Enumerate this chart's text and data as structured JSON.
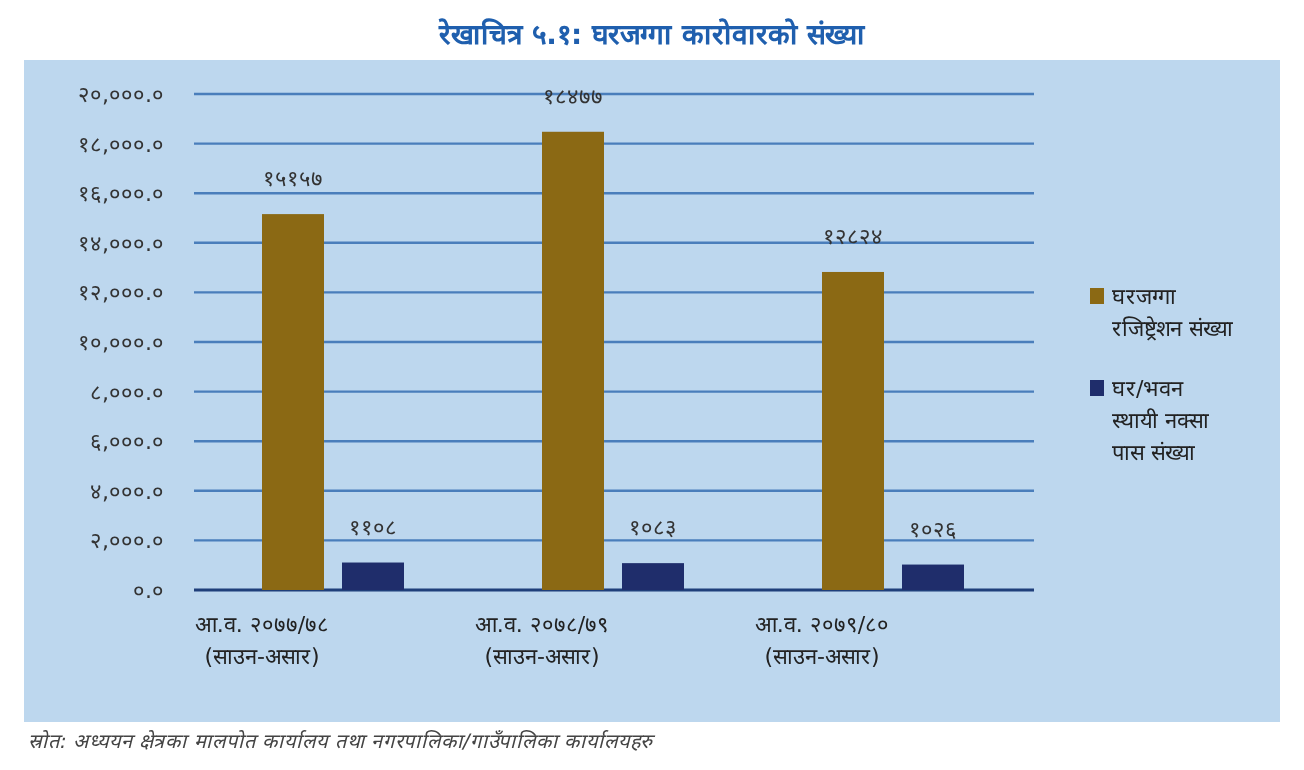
{
  "chart_data": {
    "type": "bar",
    "title": "रेखाचित्र ५.१: घरजग्गा कारोवारको संख्या",
    "categories": [
      "आ.व. २०७७/७८\n(साउन-असार)",
      "आ.व. २०७८/७९\n(साउन-असार)",
      "आ.व. २०७९/८०\n(साउन-असार)"
    ],
    "series": [
      {
        "name": "घरजग्गा\nरजिष्ट्रेशन संख्या",
        "color": "#8b6914",
        "values": [
          15157,
          18477,
          12824
        ],
        "value_labels": [
          "१५१५७",
          "१८४७७",
          "१२८२४"
        ]
      },
      {
        "name": "घर/भवन\nस्थायी नक्सा\nपास संख्या",
        "color": "#1f2d6b",
        "values": [
          1108,
          1083,
          1026
        ],
        "value_labels": [
          "११०८",
          "१०८३",
          "१०२६"
        ]
      }
    ],
    "ylim": [
      0,
      20000
    ],
    "yticks": [
      {
        "value": 0,
        "label": "०.०"
      },
      {
        "value": 2000,
        "label": "२,०००.०"
      },
      {
        "value": 4000,
        "label": "४,०००.०"
      },
      {
        "value": 6000,
        "label": "६,०००.०"
      },
      {
        "value": 8000,
        "label": "८,०००.०"
      },
      {
        "value": 10000,
        "label": "१०,०००.०"
      },
      {
        "value": 12000,
        "label": "१२,०००.०"
      },
      {
        "value": 14000,
        "label": "१४,०००.०"
      },
      {
        "value": 16000,
        "label": "१६,०००.०"
      },
      {
        "value": 18000,
        "label": "१८,०००.०"
      },
      {
        "value": 20000,
        "label": "२०,०००.०"
      }
    ],
    "grid": "y",
    "legend": "right",
    "annotations": [
      "स्रोत: अध्ययन क्षेत्रका मालपोत कार्यालय तथा नगरपालिका/गाउँपालिका कार्यालयहरु"
    ]
  }
}
